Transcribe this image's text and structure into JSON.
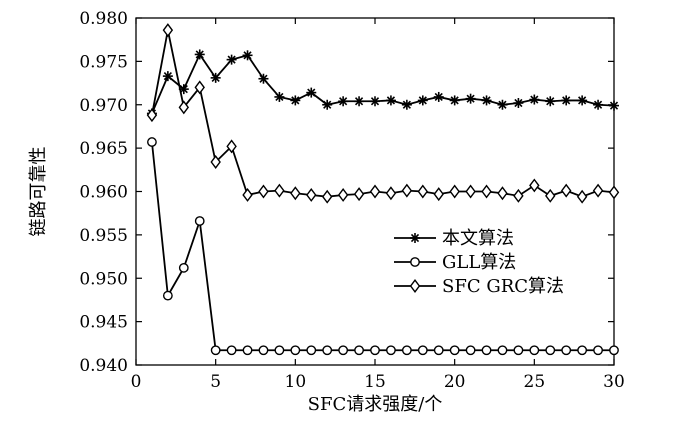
{
  "chart_data": {
    "type": "line",
    "title": "",
    "xlabel": "SFC请求强度/个",
    "ylabel": "链路可靠性",
    "xlim": [
      0,
      30
    ],
    "ylim": [
      0.94,
      0.98
    ],
    "xticks": [
      0,
      5,
      10,
      15,
      20,
      25,
      30
    ],
    "yticks": [
      0.94,
      0.945,
      0.95,
      0.955,
      0.96,
      0.965,
      0.97,
      0.975,
      0.98
    ],
    "ytick_labels": [
      "0.940",
      "0.945",
      "0.950",
      "0.955",
      "0.960",
      "0.965",
      "0.970",
      "0.975",
      "0.980"
    ],
    "grid": false,
    "legend_position": "center-right",
    "x": [
      1,
      2,
      3,
      4,
      5,
      6,
      7,
      8,
      9,
      10,
      11,
      12,
      13,
      14,
      15,
      16,
      17,
      18,
      19,
      20,
      21,
      22,
      23,
      24,
      25,
      26,
      27,
      28,
      29,
      30
    ],
    "series": [
      {
        "name": "本文算法",
        "marker": "asterisk",
        "color": "#000000",
        "values": [
          0.969,
          0.9733,
          0.9718,
          0.9758,
          0.9731,
          0.9752,
          0.9757,
          0.973,
          0.9709,
          0.9705,
          0.9714,
          0.97,
          0.9704,
          0.9704,
          0.9704,
          0.9705,
          0.97,
          0.9705,
          0.9709,
          0.9705,
          0.9707,
          0.9705,
          0.97,
          0.9702,
          0.9706,
          0.9704,
          0.9705,
          0.9705,
          0.97,
          0.9699
        ]
      },
      {
        "name": "GLL算法",
        "marker": "circle",
        "color": "#000000",
        "values": [
          0.9657,
          0.948,
          0.9512,
          0.9566,
          0.9417,
          0.9417,
          0.9417,
          0.9417,
          0.9417,
          0.9417,
          0.9417,
          0.9417,
          0.9417,
          0.9417,
          0.9417,
          0.9417,
          0.9417,
          0.9417,
          0.9417,
          0.9417,
          0.9417,
          0.9417,
          0.9417,
          0.9417,
          0.9417,
          0.9417,
          0.9417,
          0.9417,
          0.9417,
          0.9417
        ]
      },
      {
        "name": "SFC GRC算法",
        "marker": "diamond",
        "color": "#000000",
        "values": [
          0.9688,
          0.9786,
          0.9697,
          0.972,
          0.9634,
          0.9652,
          0.9596,
          0.96,
          0.9601,
          0.9598,
          0.9596,
          0.9594,
          0.9596,
          0.9597,
          0.96,
          0.9598,
          0.9601,
          0.96,
          0.9597,
          0.96,
          0.96,
          0.96,
          0.9598,
          0.9595,
          0.9607,
          0.9595,
          0.9601,
          0.9594,
          0.9601,
          0.9599
        ]
      }
    ]
  }
}
